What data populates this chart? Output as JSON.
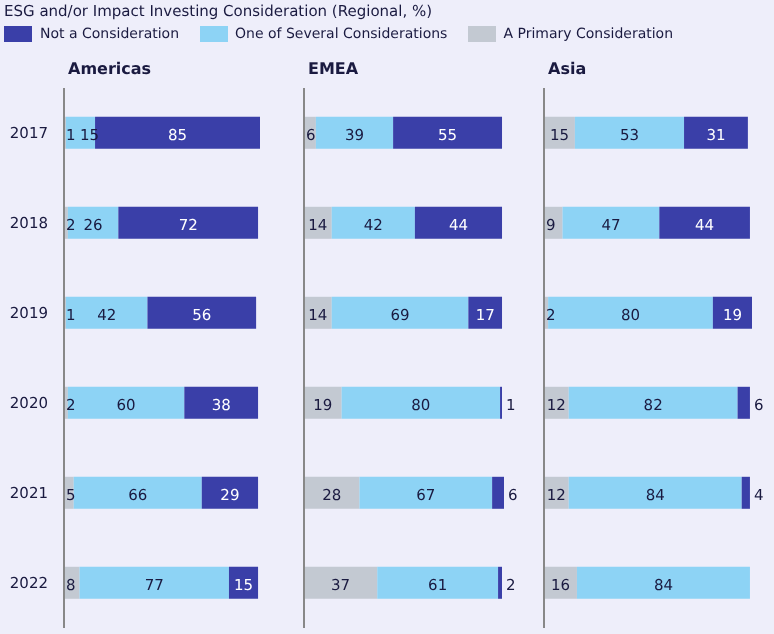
{
  "chart_data": [
    {
      "type": "bar",
      "orientation": "horizontal",
      "stacked": true,
      "title": "Americas",
      "annotations": [
        "ESG and/or Impact Investing Consideration (Regional, %)"
      ],
      "legend": "top",
      "tick_labels": "y",
      "data_labels": true,
      "categories": [
        "2017",
        "2018",
        "2019",
        "2020",
        "2021",
        "2022"
      ],
      "series": [
        {
          "name": "A Primary Consideration",
          "color": "#c3c9d2",
          "values": [
            1,
            2,
            1,
            2,
            5,
            8
          ]
        },
        {
          "name": "One of Several Considerations",
          "color": "#8dd3f5",
          "values": [
            15,
            26,
            42,
            60,
            66,
            77
          ]
        },
        {
          "name": "Not a Consideration",
          "color": "#3a3fa8",
          "values": [
            85,
            72,
            56,
            38,
            29,
            15
          ]
        }
      ]
    },
    {
      "type": "bar",
      "orientation": "horizontal",
      "stacked": true,
      "title": "EMEA",
      "tick_labels": false,
      "data_labels": true,
      "categories": [
        "2017",
        "2018",
        "2019",
        "2020",
        "2021",
        "2022"
      ],
      "series": [
        {
          "color": "#c3c9d2",
          "values": [
            6,
            14,
            14,
            19,
            28,
            37
          ]
        },
        {
          "color": "#8dd3f5",
          "values": [
            39,
            42,
            69,
            80,
            67,
            61
          ]
        },
        {
          "color": "#3a3fa8",
          "values": [
            55,
            44,
            17,
            1,
            6,
            2
          ]
        }
      ]
    },
    {
      "type": "bar",
      "orientation": "horizontal",
      "stacked": true,
      "title": "Asia",
      "tick_labels": false,
      "data_labels": true,
      "categories": [
        "2017",
        "2018",
        "2019",
        "2020",
        "2021",
        "2022"
      ],
      "series": [
        {
          "color": "#c3c9d2",
          "values": [
            15,
            9,
            2,
            12,
            12,
            16
          ]
        },
        {
          "color": "#8dd3f5",
          "values": [
            53,
            47,
            80,
            82,
            84,
            84
          ]
        },
        {
          "color": "#3a3fa8",
          "values": [
            31,
            44,
            19,
            6,
            4,
            null
          ]
        }
      ]
    }
  ]
}
